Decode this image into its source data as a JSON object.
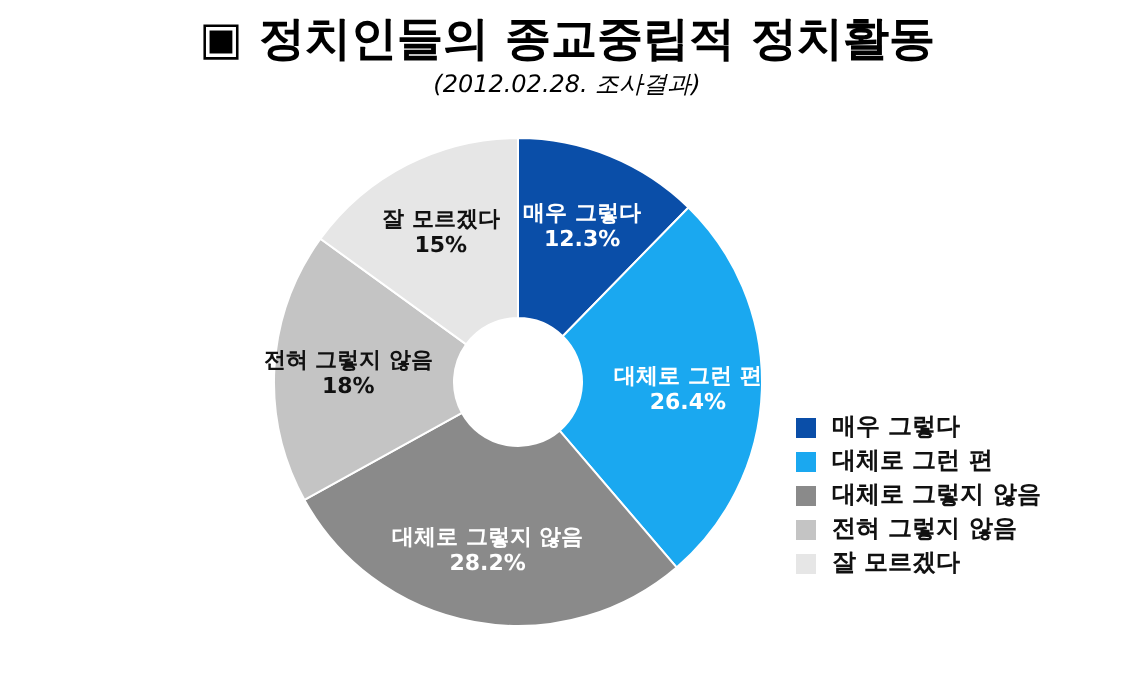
{
  "chart_data": {
    "type": "donut",
    "title": "▣ 정치인들의 종교중립적 정치활동",
    "subtitle": "(2012.02.28. 조사결과)",
    "categories": [
      "매우 그렇다",
      "대체로 그런 편",
      "대체로 그렇지 않음",
      "전혀 그렇지 않음",
      "잘 모르겠다"
    ],
    "values": [
      12.3,
      26.4,
      28.2,
      18,
      15
    ],
    "value_labels": [
      "12.3%",
      "26.4%",
      "28.2%",
      "18%",
      "15%"
    ],
    "colors": [
      "#0a4ea8",
      "#1aa8f0",
      "#8a8a8a",
      "#c4c4c4",
      "#e6e6e6"
    ],
    "legend": "right"
  }
}
